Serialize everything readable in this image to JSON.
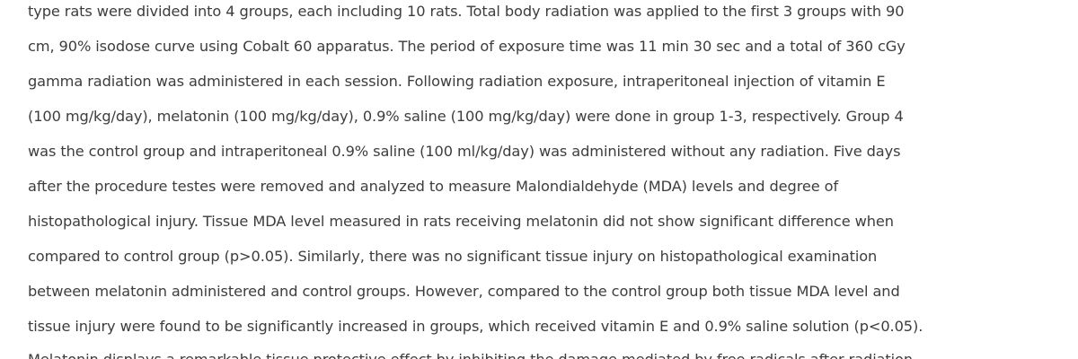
{
  "abstract": {
    "lines": [
      "type rats were divided into 4 groups, each including 10 rats. Total body radiation was applied to the first 3 groups with 90",
      "cm, 90% isodose curve using Cobalt 60 apparatus. The period of exposure time was 11 min 30 sec and a total of 360 cGy",
      "gamma radiation was administered in each session. Following radiation exposure, intraperitoneal injection of vitamin E",
      "(100 mg/kg/day), melatonin (100 mg/kg/day), 0.9% saline (100 mg/kg/day) were done in group 1-3, respectively. Group 4",
      "was the control group and intraperitoneal 0.9% saline (100 ml/kg/day) was administered without any radiation. Five days",
      "after the procedure testes were removed and analyzed to measure Malondialdehyde (MDA) levels and degree of",
      "histopathological injury. Tissue MDA level measured in rats receiving melatonin did not show significant difference when",
      "compared to control group (p>0.05). Similarly, there was no significant tissue injury on histopathological examination",
      "between melatonin administered and control groups. However, compared to the control group both tissue MDA level and",
      "tissue injury were found to be significantly increased in groups, which received vitamin E and 0.9% saline solution (p<0.05).",
      "Melatonin displays a remarkable tissue protective effect by inhibiting the damage mediated by free radicals after radiation"
    ]
  }
}
